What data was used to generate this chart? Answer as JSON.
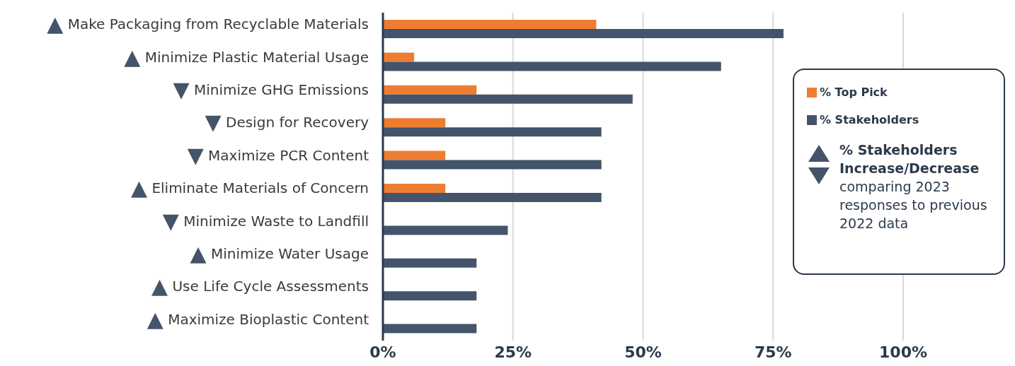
{
  "chart_data": {
    "type": "bar",
    "orientation": "horizontal",
    "categories": [
      "▲ Make Packaging from Recyclable Materials",
      "▲ Minimize Plastic Material Usage",
      "▼ Minimize GHG Emissions",
      "▼ Design for Recovery",
      "▼ Maximize PCR Content",
      "▲ Eliminate Materials of Concern",
      "▼ Minimize Waste to Landfill",
      "▲ Minimize Water Usage",
      "▲ Use Life Cycle Assessments",
      "▲ Maximize Bioplastic Content"
    ],
    "series": [
      {
        "name": "% Top Pick",
        "color": "#ed7d31",
        "values": [
          41,
          6,
          18,
          12,
          12,
          12,
          null,
          null,
          null,
          null
        ]
      },
      {
        "name": "% Stakeholders",
        "color": "#44546a",
        "values": [
          77,
          65,
          48,
          42,
          42,
          42,
          24,
          18,
          18,
          18
        ]
      }
    ],
    "xlim": [
      0,
      100
    ],
    "xticks": [
      {
        "value": 0,
        "label": "0%"
      },
      {
        "value": 25,
        "label": "25%"
      },
      {
        "value": 50,
        "label": "50%"
      },
      {
        "value": 75,
        "label": "75%"
      },
      {
        "value": 100,
        "label": "100%"
      }
    ],
    "grid": "x",
    "legend": "right",
    "annotations": [
      "% Stakeholders Increase/Decrease",
      "comparing 2023 responses to previous 2022 data"
    ]
  }
}
